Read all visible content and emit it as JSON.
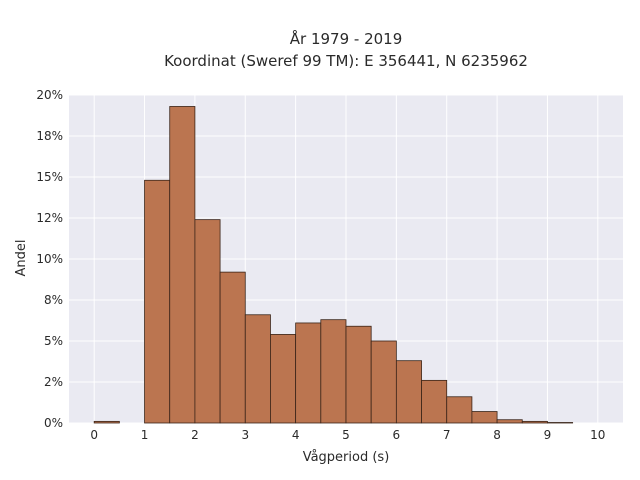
{
  "chart_data": {
    "type": "bar",
    "title_line1": "År 1979 - 2019",
    "title_line2": "Koordinat (Sweref 99 TM): E 356441, N 6235962",
    "xlabel": "Vågperiod (s)",
    "ylabel": "Andel",
    "x_ticks": [
      "0",
      "1",
      "2",
      "3",
      "4",
      "5",
      "6",
      "7",
      "8",
      "9",
      "10"
    ],
    "y_ticks": [
      "0%",
      "2%",
      "5%",
      "8%",
      "10%",
      "12%",
      "15%",
      "18%",
      "20%"
    ],
    "xlim": [
      -0.5,
      10.5
    ],
    "ylim": [
      0,
      0.2
    ],
    "grid": true,
    "bin_width": 0.5,
    "bins": [
      {
        "start": 0.0,
        "value": 0.001
      },
      {
        "start": 1.0,
        "value": 0.148
      },
      {
        "start": 1.5,
        "value": 0.193
      },
      {
        "start": 2.0,
        "value": 0.124
      },
      {
        "start": 2.5,
        "value": 0.092
      },
      {
        "start": 3.0,
        "value": 0.066
      },
      {
        "start": 3.5,
        "value": 0.054
      },
      {
        "start": 4.0,
        "value": 0.061
      },
      {
        "start": 4.5,
        "value": 0.063
      },
      {
        "start": 5.0,
        "value": 0.059
      },
      {
        "start": 5.5,
        "value": 0.05
      },
      {
        "start": 6.0,
        "value": 0.038
      },
      {
        "start": 6.5,
        "value": 0.026
      },
      {
        "start": 7.0,
        "value": 0.016
      },
      {
        "start": 7.5,
        "value": 0.007
      },
      {
        "start": 8.0,
        "value": 0.002
      },
      {
        "start": 8.5,
        "value": 0.001
      },
      {
        "start": 9.0,
        "value": 0.0003
      }
    ],
    "colors": {
      "bar_fill": "#bb7550",
      "bar_stroke": "#3a2418",
      "plot_bg": "#eaeaf2",
      "grid": "#ffffff"
    }
  }
}
